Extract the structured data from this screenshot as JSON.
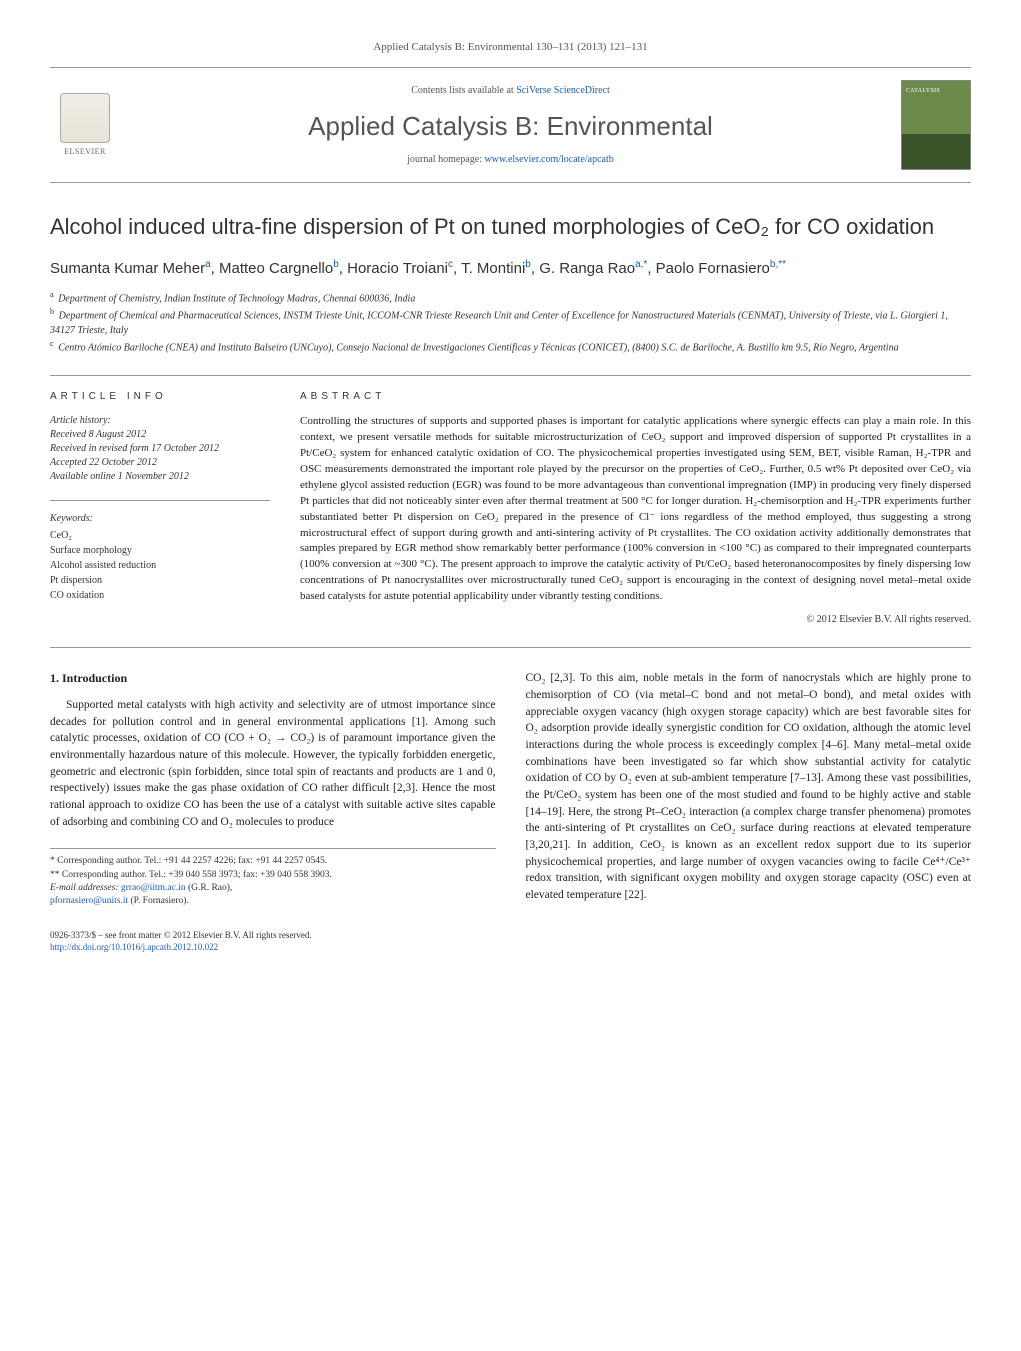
{
  "header": {
    "journal_ref": "Applied Catalysis B: Environmental 130–131 (2013) 121–131",
    "contents_line_prefix": "Contents lists available at ",
    "contents_link": "SciVerse ScienceDirect",
    "journal_title": "Applied Catalysis B: Environmental",
    "homepage_prefix": "journal homepage: ",
    "homepage_url": "www.elsevier.com/locate/apcatb",
    "elsevier_label": "ELSEVIER"
  },
  "article": {
    "title": "Alcohol induced ultra-fine dispersion of Pt on tuned morphologies of CeO₂ for CO oxidation",
    "authors_html_parts": [
      {
        "name": "Sumanta Kumar Meher",
        "aff": "a"
      },
      {
        "name": "Matteo Cargnello",
        "aff": "b"
      },
      {
        "name": "Horacio Troiani",
        "aff": "c"
      },
      {
        "name": "T. Montini",
        "aff": "b"
      },
      {
        "name": "G. Ranga Rao",
        "aff": "a,*"
      },
      {
        "name": "Paolo Fornasiero",
        "aff": "b,**"
      }
    ],
    "affiliations": [
      {
        "key": "a",
        "text": "Department of Chemistry, Indian Institute of Technology Madras, Chennai 600036, India"
      },
      {
        "key": "b",
        "text": "Department of Chemical and Pharmaceutical Sciences, INSTM Trieste Unit, ICCOM-CNR Trieste Research Unit and Center of Excellence for Nanostructured Materials (CENMAT), University of Trieste, via L. Giorgieri 1, 34127 Trieste, Italy"
      },
      {
        "key": "c",
        "text": "Centro Atómico Bariloche (CNEA) and Instituto Balseiro (UNCuyo), Consejo Nacional de Investigaciones Científicas y Técnicas (CONICET), (8400) S.C. de Bariloche, A. Bustillo km 9.5, Río Negro, Argentina"
      }
    ]
  },
  "info": {
    "article_info_head": "article info",
    "history_label": "Article history:",
    "history": [
      "Received 8 August 2012",
      "Received in revised form 17 October 2012",
      "Accepted 22 October 2012",
      "Available online 1 November 2012"
    ],
    "keywords_label": "Keywords:",
    "keywords": [
      "CeO₂",
      "Surface morphology",
      "Alcohol assisted reduction",
      "Pt dispersion",
      "CO oxidation"
    ]
  },
  "abstract": {
    "head": "abstract",
    "text": "Controlling the structures of supports and supported phases is important for catalytic applications where synergic effects can play a main role. In this context, we present versatile methods for suitable microstructurization of CeO₂ support and improved dispersion of supported Pt crystallites in a Pt/CeO₂ system for enhanced catalytic oxidation of CO. The physicochemical properties investigated using SEM, BET, visible Raman, H₂-TPR and OSC measurements demonstrated the important role played by the precursor on the properties of CeO₂. Further, 0.5 wt% Pt deposited over CeO₂ via ethylene glycol assisted reduction (EGR) was found to be more advantageous than conventional impregnation (IMP) in producing very finely dispersed Pt particles that did not noticeably sinter even after thermal treatment at 500 °C for longer duration. H₂-chemisorption and H₂-TPR experiments further substantiated better Pt dispersion on CeO₂ prepared in the presence of Cl⁻ ions regardless of the method employed, thus suggesting a strong microstructural effect of support during growth and anti-sintering activity of Pt crystallites. The CO oxidation activity additionally demonstrates that samples prepared by EGR method show remarkably better performance (100% conversion in <100 °C) as compared to their impregnated counterparts (100% conversion at ~300 °C). The present approach to improve the catalytic activity of Pt/CeO₂ based heteronanocomposites by finely dispersing low concentrations of Pt nanocrystallites over microstructurally tuned CeO₂ support is encouraging in the context of designing novel metal–metal oxide based catalysts for astute potential applicability under vibrantly testing conditions.",
    "copyright": "© 2012 Elsevier B.V. All rights reserved."
  },
  "body": {
    "section_title": "1. Introduction",
    "col1": "Supported metal catalysts with high activity and selectivity are of utmost importance since decades for pollution control and in general environmental applications [1]. Among such catalytic processes, oxidation of CO (CO + O₂ → CO₂) is of paramount importance given the environmentally hazardous nature of this molecule. However, the typically forbidden energetic, geometric and electronic (spin forbidden, since total spin of reactants and products are 1 and 0, respectively) issues make the gas phase oxidation of CO rather difficult [2,3]. Hence the most rational approach to oxidize CO has been the use of a catalyst with suitable active sites capable of adsorbing and combining CO and O₂ molecules to produce",
    "col2": "CO₂ [2,3]. To this aim, noble metals in the form of nanocrystals which are highly prone to chemisorption of CO (via metal–C bond and not metal–O bond), and metal oxides with appreciable oxygen vacancy (high oxygen storage capacity) which are best favorable sites for O₂ adsorption provide ideally synergistic condition for CO oxidation, although the atomic level interactions during the whole process is exceedingly complex [4–6]. Many metal–metal oxide combinations have been investigated so far which show substantial activity for catalytic oxidation of CO by O₂ even at sub-ambient temperature [7–13]. Among these vast possibilities, the Pt/CeO₂ system has been one of the most studied and found to be highly active and stable [14–19]. Here, the strong Pt–CeO₂ interaction (a complex charge transfer phenomena) promotes the anti-sintering of Pt crystallites on CeO₂ surface during reactions at elevated temperature [3,20,21]. In addition, CeO₂ is known as an excellent redox support due to its superior physicochemical properties, and large number of oxygen vacancies owing to facile Ce⁴⁺/Ce³⁺ redox transition, with significant oxygen mobility and oxygen storage capacity (OSC) even at elevated temperature [22]."
  },
  "footnotes": {
    "corr1": "* Corresponding author. Tel.: +91 44 2257 4226; fax: +91 44 2257 0545.",
    "corr2": "** Corresponding author. Tel.: +39 040 558 3973; fax: +39 040 558 3903.",
    "email_label": "E-mail addresses: ",
    "email1": "grrao@iitm.ac.in",
    "email1_name": " (G.R. Rao),",
    "email2": "pfornasiero@units.it",
    "email2_name": " (P. Fornasiero)."
  },
  "footer": {
    "line1": "0926-3373/$ – see front matter © 2012 Elsevier B.V. All rights reserved.",
    "doi": "http://dx.doi.org/10.1016/j.apcatb.2012.10.022"
  },
  "colors": {
    "link": "#1a5db4",
    "text": "#222222",
    "muted": "#555555",
    "rule": "#999999"
  }
}
